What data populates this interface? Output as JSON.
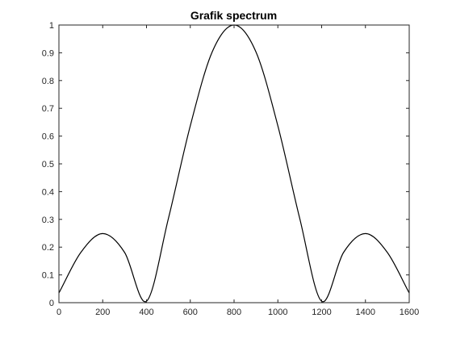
{
  "chart_data": {
    "type": "line",
    "title": "Grafik spectrum",
    "xlabel": "",
    "ylabel": "",
    "xlim": [
      0,
      1600
    ],
    "ylim": [
      0,
      1
    ],
    "xticks": [
      0,
      200,
      400,
      600,
      800,
      1000,
      1200,
      1400,
      1600
    ],
    "xtick_labels": [
      "0",
      "200",
      "400",
      "600",
      "800",
      "1000",
      "1200",
      "1400",
      "1600"
    ],
    "yticks": [
      0,
      0.1,
      0.2,
      0.3,
      0.4,
      0.5,
      0.6,
      0.7,
      0.8,
      0.9,
      1
    ],
    "ytick_labels": [
      "0",
      "0.1",
      "0.2",
      "0.3",
      "0.4",
      "0.5",
      "0.6",
      "0.7",
      "0.8",
      "0.9",
      "1"
    ],
    "grid": false,
    "line_color": "#000000",
    "series": [
      {
        "x": [
          0,
          100,
          200,
          300,
          400,
          500,
          600,
          700,
          800,
          900,
          1000,
          1100,
          1200,
          1300,
          1400,
          1500,
          1600
        ],
        "values": [
          0.035,
          0.181,
          0.249,
          0.181,
          0.005,
          0.303,
          0.637,
          0.903,
          1.0,
          0.903,
          0.637,
          0.303,
          0.005,
          0.181,
          0.249,
          0.181,
          0.035
        ]
      }
    ]
  }
}
